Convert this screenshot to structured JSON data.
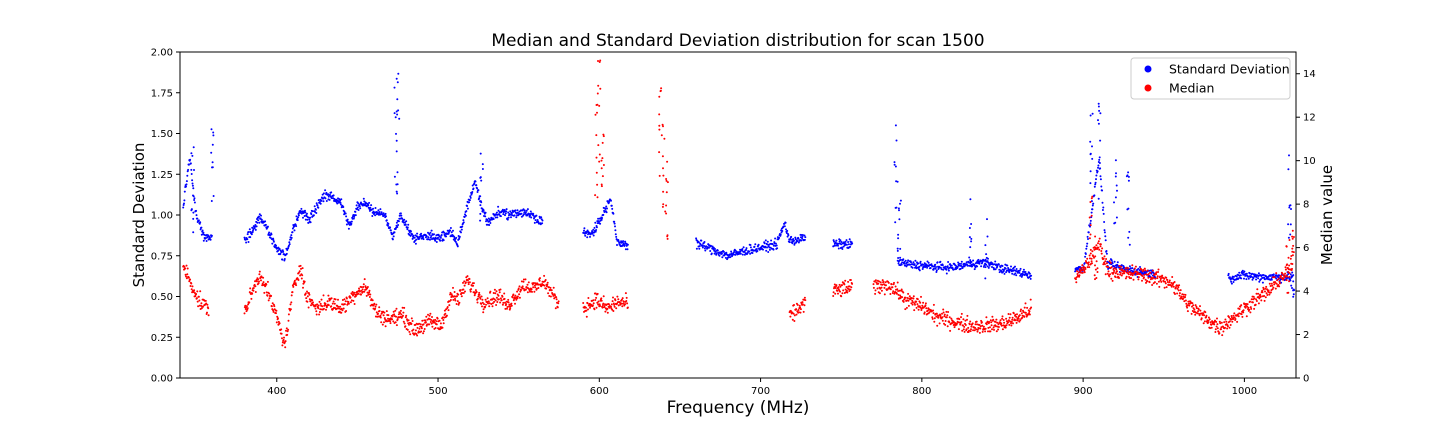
{
  "chart_data": {
    "type": "scatter",
    "title": "Median and Standard Deviation distribution for scan 1500",
    "xlabel": "Frequency (MHz)",
    "ylabel": "Standard Deviation",
    "y2label": "Median value",
    "xlim": [
      340,
      1032
    ],
    "ylim": [
      0,
      2.0
    ],
    "y2lim": [
      0,
      15
    ],
    "xticks": [
      400,
      500,
      600,
      700,
      800,
      900,
      1000
    ],
    "yticks": [
      "0.00",
      "0.25",
      "0.50",
      "0.75",
      "1.00",
      "1.25",
      "1.50",
      "1.75",
      "2.00"
    ],
    "y2ticks": [
      0,
      2,
      4,
      6,
      8,
      10,
      12,
      14
    ],
    "grid": false,
    "legend_position": "top-right",
    "series": [
      {
        "name": "Standard Deviation",
        "color": "#0000ff",
        "axis": "left",
        "trend": [
          [
            342,
            1.05
          ],
          [
            346,
            1.35
          ],
          [
            350,
            1.0
          ],
          [
            355,
            0.86
          ],
          [
            360,
            0.86
          ],
          [
            380,
            0.84
          ],
          [
            386,
            0.92
          ],
          [
            390,
            0.98
          ],
          [
            395,
            0.9
          ],
          [
            400,
            0.8
          ],
          [
            405,
            0.74
          ],
          [
            410,
            0.9
          ],
          [
            415,
            1.03
          ],
          [
            420,
            0.97
          ],
          [
            425,
            1.05
          ],
          [
            430,
            1.12
          ],
          [
            436,
            1.1
          ],
          [
            440,
            1.08
          ],
          [
            445,
            0.93
          ],
          [
            450,
            1.05
          ],
          [
            455,
            1.08
          ],
          [
            460,
            1.02
          ],
          [
            467,
            1.0
          ],
          [
            472,
            0.86
          ],
          [
            477,
            1.0
          ],
          [
            481,
            0.92
          ],
          [
            485,
            0.86
          ],
          [
            495,
            0.87
          ],
          [
            502,
            0.86
          ],
          [
            508,
            0.9
          ],
          [
            512,
            0.82
          ],
          [
            518,
            1.05
          ],
          [
            523,
            1.2
          ],
          [
            527,
            1.05
          ],
          [
            531,
            0.95
          ],
          [
            537,
            1.02
          ],
          [
            543,
            1.0
          ],
          [
            553,
            1.02
          ],
          [
            558,
            1.0
          ],
          [
            565,
            0.96
          ],
          [
            590,
            0.89
          ],
          [
            595,
            0.88
          ],
          [
            602,
            1.0
          ],
          [
            607,
            1.1
          ],
          [
            611,
            0.83
          ],
          [
            618,
            0.82
          ],
          [
            643,
            0.84
          ],
          [
            660,
            0.83
          ],
          [
            670,
            0.79
          ],
          [
            680,
            0.75
          ],
          [
            690,
            0.78
          ],
          [
            700,
            0.8
          ],
          [
            710,
            0.82
          ],
          [
            715,
            0.95
          ],
          [
            718,
            0.84
          ],
          [
            728,
            0.86
          ],
          [
            745,
            0.82
          ],
          [
            757,
            0.82
          ],
          [
            770,
            0.72
          ],
          [
            785,
            0.72
          ],
          [
            790,
            0.7
          ],
          [
            800,
            0.69
          ],
          [
            810,
            0.68
          ],
          [
            820,
            0.68
          ],
          [
            830,
            0.7
          ],
          [
            840,
            0.71
          ],
          [
            850,
            0.67
          ],
          [
            860,
            0.65
          ],
          [
            868,
            0.63
          ],
          [
            895,
            0.67
          ],
          [
            900,
            0.66
          ],
          [
            905,
            1.0
          ],
          [
            910,
            1.35
          ],
          [
            915,
            0.7
          ],
          [
            925,
            0.67
          ],
          [
            935,
            0.65
          ],
          [
            945,
            0.64
          ],
          [
            960,
            0.62
          ],
          [
            975,
            0.61
          ],
          [
            990,
            0.61
          ],
          [
            1000,
            0.63
          ],
          [
            1010,
            0.62
          ],
          [
            1020,
            0.62
          ],
          [
            1030,
            0.62
          ]
        ],
        "spikes": [
          [
            348,
            1.45
          ],
          [
            360,
            1.55
          ],
          [
            475,
            1.9
          ],
          [
            474,
            1.8
          ],
          [
            527,
            1.38
          ],
          [
            784,
            1.55
          ],
          [
            786,
            1.2
          ],
          [
            905,
            1.65
          ],
          [
            910,
            1.75
          ],
          [
            920,
            1.45
          ],
          [
            928,
            1.3
          ],
          [
            830,
            1.1
          ],
          [
            840,
            0.98
          ],
          [
            1028,
            1.4
          ],
          [
            1030,
            0.65
          ]
        ]
      },
      {
        "name": "Median",
        "color": "#ff0000",
        "axis": "right",
        "trend": [
          [
            342,
            5.2
          ],
          [
            346,
            4.5
          ],
          [
            352,
            3.5
          ],
          [
            358,
            3.2
          ],
          [
            380,
            3.0
          ],
          [
            385,
            4.0
          ],
          [
            390,
            4.8
          ],
          [
            395,
            3.8
          ],
          [
            400,
            2.8
          ],
          [
            405,
            1.5
          ],
          [
            410,
            4.0
          ],
          [
            415,
            5.2
          ],
          [
            418,
            3.8
          ],
          [
            425,
            3.2
          ],
          [
            432,
            3.5
          ],
          [
            440,
            3.2
          ],
          [
            450,
            4.0
          ],
          [
            455,
            4.2
          ],
          [
            462,
            3.0
          ],
          [
            470,
            2.7
          ],
          [
            478,
            2.9
          ],
          [
            485,
            2.2
          ],
          [
            495,
            2.6
          ],
          [
            502,
            2.4
          ],
          [
            508,
            3.8
          ],
          [
            513,
            3.6
          ],
          [
            518,
            4.5
          ],
          [
            523,
            4.0
          ],
          [
            528,
            3.5
          ],
          [
            538,
            3.8
          ],
          [
            543,
            3.3
          ],
          [
            553,
            4.3
          ],
          [
            560,
            4.1
          ],
          [
            565,
            4.5
          ],
          [
            575,
            3.4
          ],
          [
            590,
            3.2
          ],
          [
            598,
            3.6
          ],
          [
            605,
            3.2
          ],
          [
            612,
            3.5
          ],
          [
            618,
            3.4
          ],
          [
            643,
            2.8
          ],
          [
            660,
            2.7
          ],
          [
            680,
            2.5
          ],
          [
            700,
            2.8
          ],
          [
            718,
            2.8
          ],
          [
            728,
            3.5
          ],
          [
            745,
            4.0
          ],
          [
            757,
            4.2
          ],
          [
            770,
            4.2
          ],
          [
            780,
            4.3
          ],
          [
            790,
            3.6
          ],
          [
            800,
            3.3
          ],
          [
            810,
            2.8
          ],
          [
            820,
            2.6
          ],
          [
            830,
            2.4
          ],
          [
            840,
            2.4
          ],
          [
            850,
            2.5
          ],
          [
            860,
            2.8
          ],
          [
            868,
            3.2
          ],
          [
            895,
            4.5
          ],
          [
            905,
            5.5
          ],
          [
            910,
            6.2
          ],
          [
            915,
            5.0
          ],
          [
            925,
            4.8
          ],
          [
            935,
            4.8
          ],
          [
            945,
            4.6
          ],
          [
            955,
            4.4
          ],
          [
            965,
            3.4
          ],
          [
            975,
            2.8
          ],
          [
            985,
            2.3
          ],
          [
            995,
            2.9
          ],
          [
            1005,
            3.5
          ],
          [
            1015,
            4.0
          ],
          [
            1025,
            4.8
          ],
          [
            1030,
            5.2
          ]
        ],
        "spikes": [
          [
            598,
            13.5
          ],
          [
            600,
            14.8
          ],
          [
            602,
            11.5
          ],
          [
            638,
            14.8
          ],
          [
            640,
            12.0
          ],
          [
            642,
            10.5
          ],
          [
            905,
            9.0
          ],
          [
            908,
            7.0
          ],
          [
            1027,
            6.5
          ],
          [
            1030,
            7.0
          ]
        ]
      }
    ]
  }
}
